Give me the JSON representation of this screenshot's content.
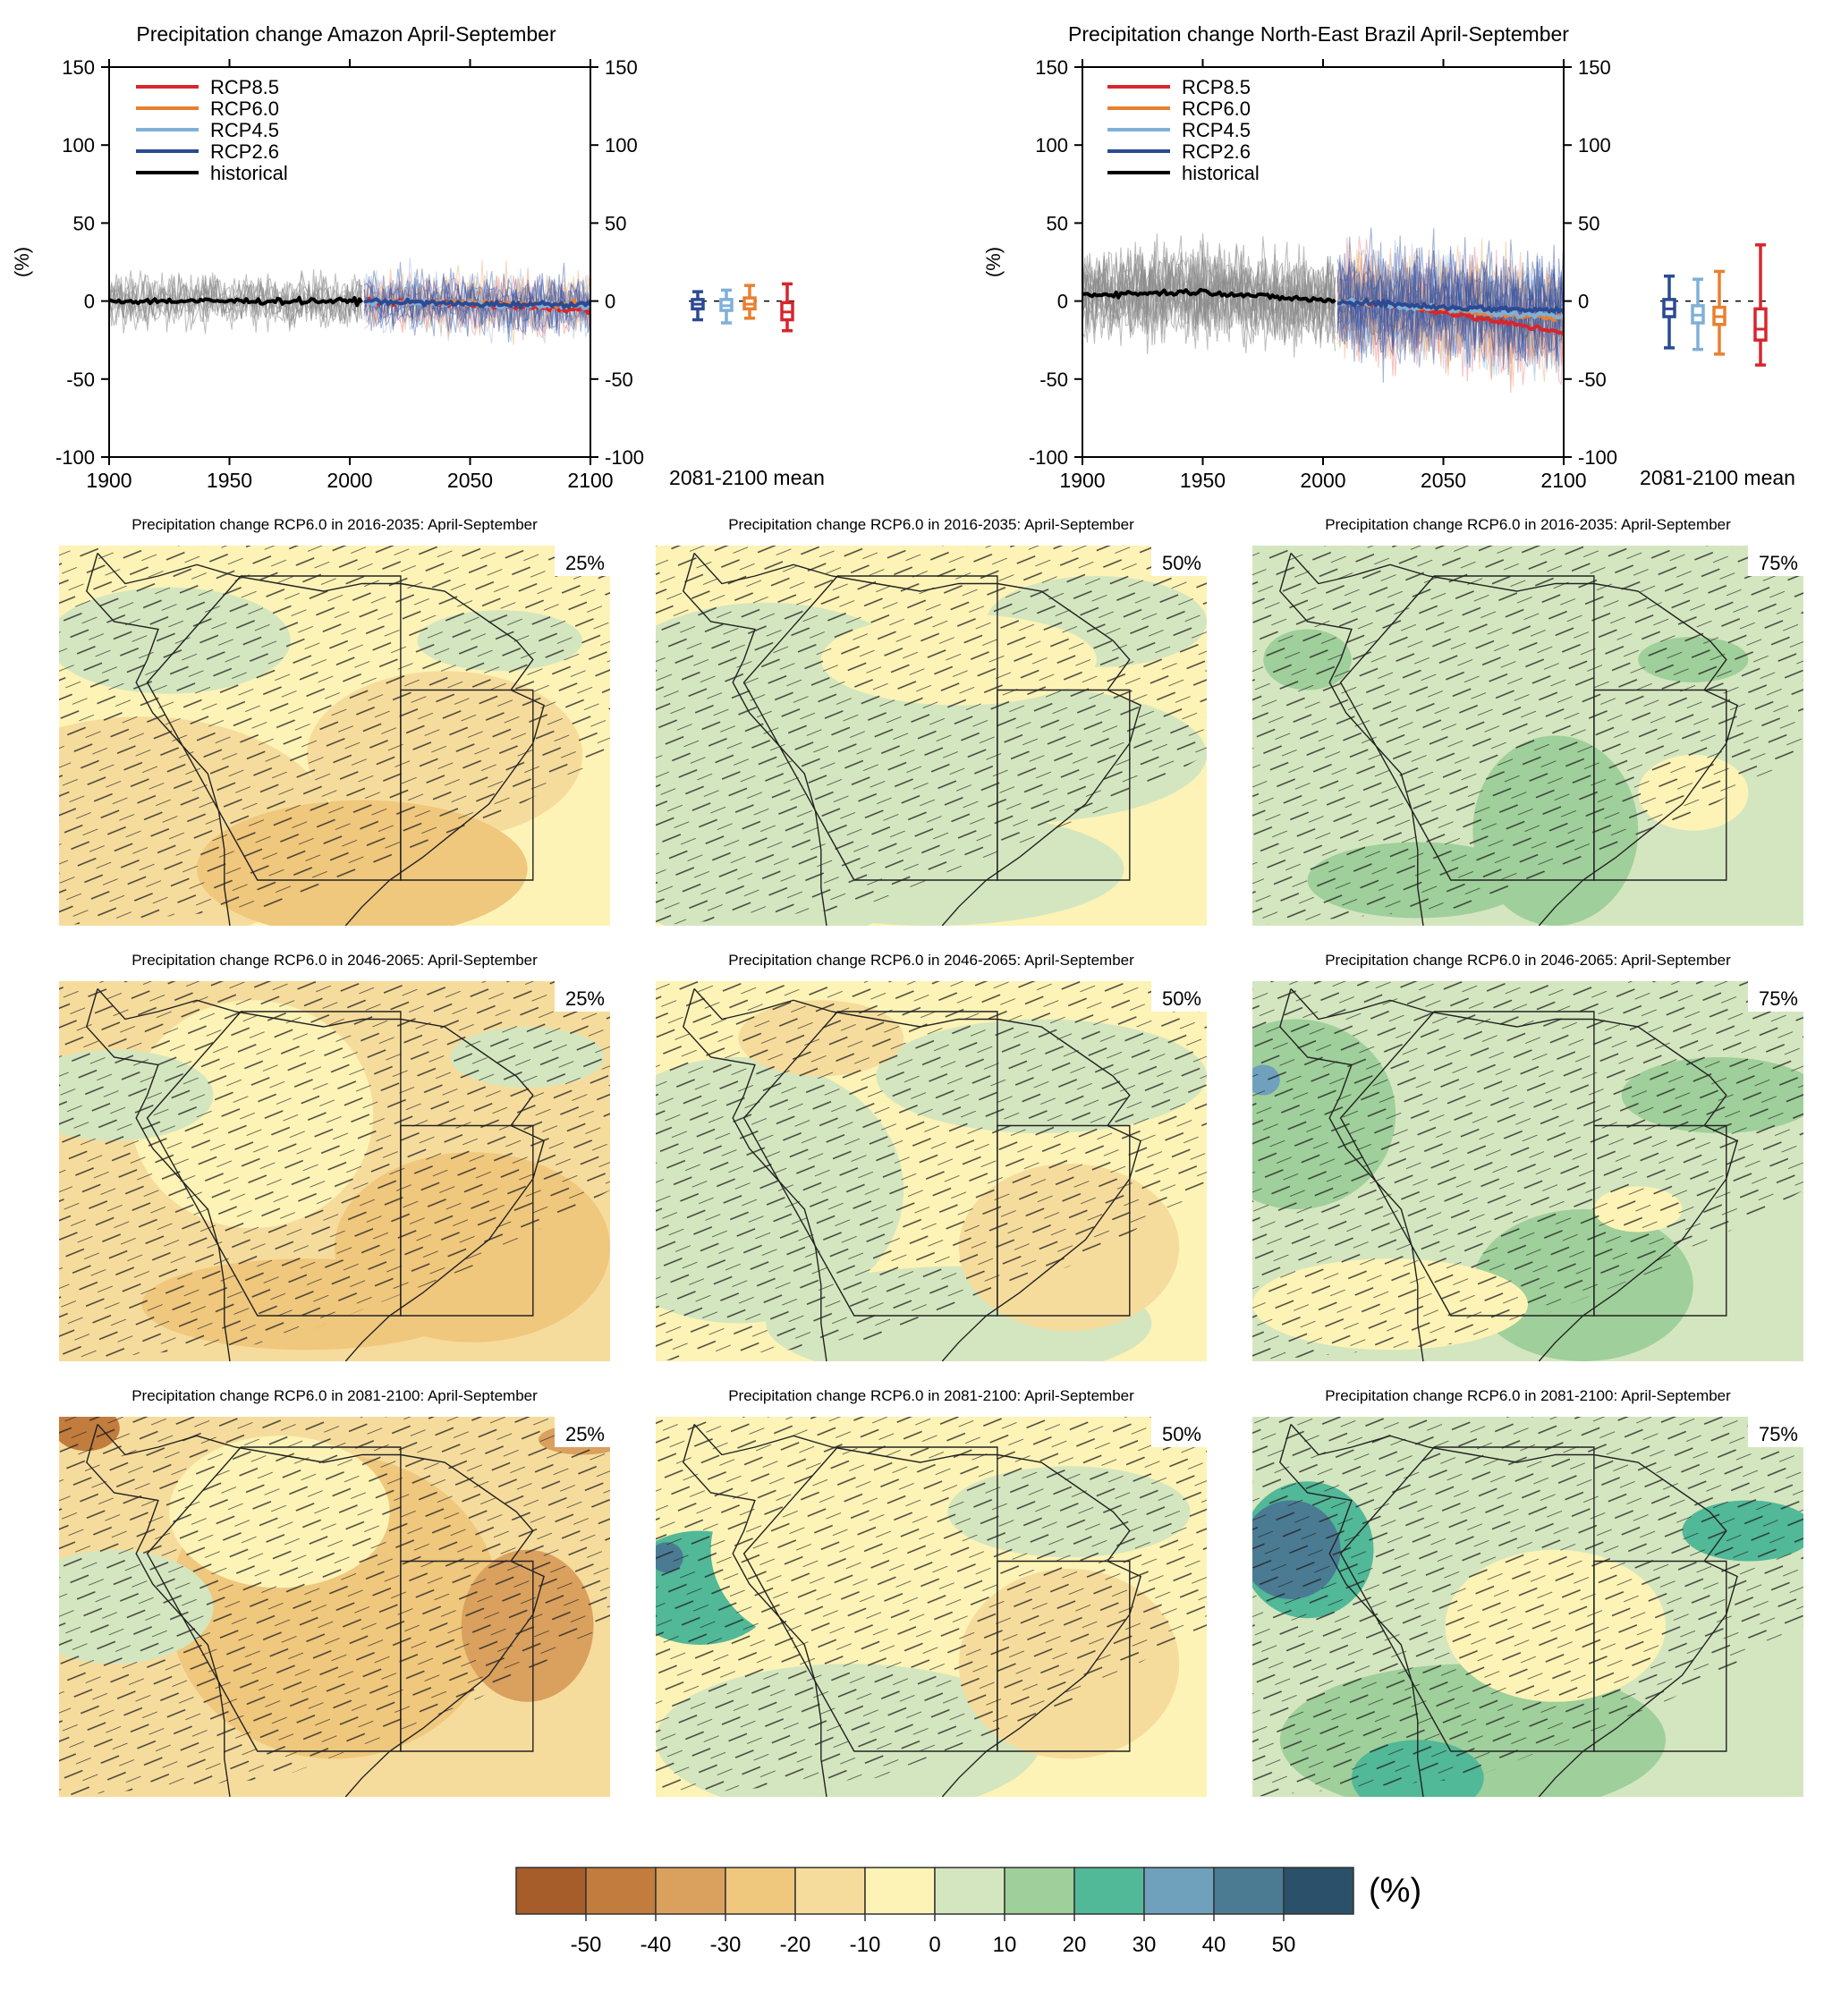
{
  "timeseries_panels": [
    {
      "title": "Precipitation change Amazon April-September",
      "ylabel": "(%)",
      "side_label": "2081-2100 mean",
      "x_ticks": [
        "1900",
        "1950",
        "2000",
        "2050",
        "2100"
      ],
      "y_ticks": [
        "150",
        "100",
        "50",
        "0",
        "-50",
        "-100"
      ]
    },
    {
      "title": "Precipitation change North-East Brazil April-September",
      "ylabel": "(%)",
      "side_label": "2081-2100 mean",
      "x_ticks": [
        "1900",
        "1950",
        "2000",
        "2050",
        "2100"
      ],
      "y_ticks": [
        "150",
        "100",
        "50",
        "0",
        "-50",
        "-100"
      ]
    }
  ],
  "legend": [
    {
      "label": "RCP8.5",
      "color": "#d7262e"
    },
    {
      "label": "RCP6.0",
      "color": "#e8802f"
    },
    {
      "label": "RCP4.5",
      "color": "#7fb0d8"
    },
    {
      "label": "RCP2.6",
      "color": "#2b4a92"
    },
    {
      "label": "historical",
      "color": "#000000"
    }
  ],
  "maps": [
    {
      "title": "Precipitation change RCP6.0 in 2016-2035: April-September",
      "percentile": "25%"
    },
    {
      "title": "Precipitation change RCP6.0 in 2016-2035: April-September",
      "percentile": "50%"
    },
    {
      "title": "Precipitation change RCP6.0 in 2016-2035: April-September",
      "percentile": "75%"
    },
    {
      "title": "Precipitation change RCP6.0 in 2046-2065: April-September",
      "percentile": "25%"
    },
    {
      "title": "Precipitation change RCP6.0 in 2046-2065: April-September",
      "percentile": "50%"
    },
    {
      "title": "Precipitation change RCP6.0 in 2046-2065: April-September",
      "percentile": "75%"
    },
    {
      "title": "Precipitation change RCP6.0 in 2081-2100: April-September",
      "percentile": "25%"
    },
    {
      "title": "Precipitation change RCP6.0 in 2081-2100: April-September",
      "percentile": "50%"
    },
    {
      "title": "Precipitation change RCP6.0 in 2081-2100: April-September",
      "percentile": "75%"
    }
  ],
  "colorbar": {
    "unit": "(%)",
    "colors": [
      "#a65d2a",
      "#c27c3d",
      "#d9a05e",
      "#efc77d",
      "#f6dc9c",
      "#fdf3b6",
      "#d4e6bf",
      "#9fcf9a",
      "#51b898",
      "#6fa1bd",
      "#4a7b93",
      "#2b5069"
    ],
    "tick_labels": [
      "-50",
      "-40",
      "-30",
      "-20",
      "-10",
      "0",
      "10",
      "20",
      "30",
      "40",
      "50"
    ]
  },
  "chart_data": [
    {
      "type": "line",
      "title": "Precipitation change Amazon April-September",
      "ylabel": "(%)",
      "xlim": [
        1900,
        2100
      ],
      "ylim": [
        -100,
        150
      ],
      "grid": false,
      "legend_position": "top-left",
      "series": [
        {
          "name": "historical",
          "x": [
            1900,
            1925,
            1950,
            1975,
            2005
          ],
          "values": [
            0,
            0,
            0,
            0,
            0
          ]
        },
        {
          "name": "RCP2.6",
          "x": [
            2006,
            2030,
            2050,
            2075,
            2100
          ],
          "values": [
            0,
            -1,
            -2,
            -2,
            -2
          ]
        },
        {
          "name": "RCP4.5",
          "x": [
            2006,
            2030,
            2050,
            2075,
            2100
          ],
          "values": [
            0,
            -1,
            -2,
            -3,
            -3
          ]
        },
        {
          "name": "RCP6.0",
          "x": [
            2006,
            2030,
            2050,
            2075,
            2100
          ],
          "values": [
            0,
            -1,
            -1,
            -2,
            -2
          ]
        },
        {
          "name": "RCP8.5",
          "x": [
            2006,
            2030,
            2050,
            2075,
            2100
          ],
          "values": [
            0,
            -1,
            -2,
            -4,
            -6
          ]
        }
      ],
      "boxplots_2081_2100_mean": [
        {
          "name": "RCP2.6",
          "min": -12,
          "q1": -5,
          "median": -2,
          "q3": 1,
          "max": 6
        },
        {
          "name": "RCP4.5",
          "min": -14,
          "q1": -6,
          "median": -3,
          "q3": 1,
          "max": 7
        },
        {
          "name": "RCP6.0",
          "min": -11,
          "q1": -5,
          "median": -2,
          "q3": 2,
          "max": 10
        },
        {
          "name": "RCP8.5",
          "min": -19,
          "q1": -12,
          "median": -7,
          "q3": -1,
          "max": 11
        }
      ]
    },
    {
      "type": "line",
      "title": "Precipitation change North-East Brazil April-September",
      "ylabel": "(%)",
      "xlim": [
        1900,
        2100
      ],
      "ylim": [
        -100,
        150
      ],
      "grid": false,
      "legend_position": "top-left",
      "series": [
        {
          "name": "historical",
          "x": [
            1900,
            1925,
            1950,
            1975,
            2005
          ],
          "values": [
            4,
            5,
            6,
            3,
            0
          ]
        },
        {
          "name": "RCP2.6",
          "x": [
            2006,
            2030,
            2050,
            2075,
            2100
          ],
          "values": [
            0,
            -2,
            -4,
            -5,
            -6
          ]
        },
        {
          "name": "RCP4.5",
          "x": [
            2006,
            2030,
            2050,
            2075,
            2100
          ],
          "values": [
            0,
            -3,
            -5,
            -8,
            -10
          ]
        },
        {
          "name": "RCP6.0",
          "x": [
            2006,
            2030,
            2050,
            2075,
            2100
          ],
          "values": [
            0,
            -3,
            -5,
            -9,
            -11
          ]
        },
        {
          "name": "RCP8.5",
          "x": [
            2006,
            2030,
            2050,
            2075,
            2100
          ],
          "values": [
            0,
            -3,
            -7,
            -14,
            -20
          ]
        }
      ],
      "boxplots_2081_2100_mean": [
        {
          "name": "RCP2.6",
          "min": -30,
          "q1": -10,
          "median": -5,
          "q3": 1,
          "max": 16
        },
        {
          "name": "RCP4.5",
          "min": -31,
          "q1": -14,
          "median": -9,
          "q3": -3,
          "max": 14
        },
        {
          "name": "RCP6.0",
          "min": -34,
          "q1": -15,
          "median": -10,
          "q3": -4,
          "max": 19
        },
        {
          "name": "RCP8.5",
          "min": -41,
          "q1": -25,
          "median": -18,
          "q3": -5,
          "max": 36
        }
      ]
    }
  ]
}
